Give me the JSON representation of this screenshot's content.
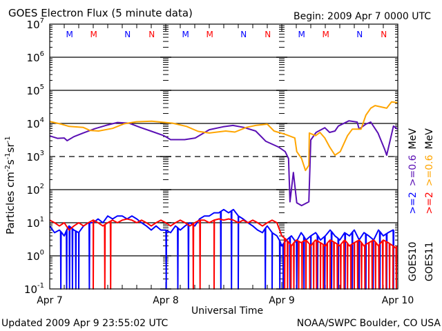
{
  "chart_data": {
    "type": "line",
    "title": "GOES Electron Flux (5 minute data)",
    "subtitle": "Begin: 2009 Apr 7 0000 UTC",
    "xlabel": "Universal Time",
    "ylabel": {
      "base": "Particles cm",
      "e1": "-2",
      "s": "s",
      "e2": "-1",
      "sr": "sr",
      "e3": "-1"
    },
    "x_unit": "hours since 2009 Apr 7 0000 UTC",
    "xlim": [
      0,
      72
    ],
    "xticks": [
      {
        "t": 0,
        "label": "Apr 7"
      },
      {
        "t": 24,
        "label": "Apr 8"
      },
      {
        "t": 48,
        "label": "Apr 9"
      },
      {
        "t": 72,
        "label": "Apr 10"
      }
    ],
    "yscale": "log",
    "ylim": [
      0.1,
      10000000
    ],
    "yticks": [
      {
        "exp": "7"
      },
      {
        "exp": "6"
      },
      {
        "exp": "5"
      },
      {
        "exp": "4"
      },
      {
        "exp": "3"
      },
      {
        "exp": "2"
      },
      {
        "exp": "1"
      },
      {
        "exp": "0"
      },
      {
        "exp": "-1"
      }
    ],
    "ytick_base": "10",
    "reference_lines": {
      "solid": [
        1000000,
        100000,
        10000,
        100,
        10,
        1
      ],
      "dashed": [
        1000
      ]
    },
    "markers": [
      {
        "t": 4.1,
        "label": "M",
        "color": "#0000ff"
      },
      {
        "t": 9.1,
        "label": "M",
        "color": "#ff0000"
      },
      {
        "t": 16.1,
        "label": "N",
        "color": "#0000ff"
      },
      {
        "t": 21.1,
        "label": "N",
        "color": "#ff0000"
      },
      {
        "t": 28.1,
        "label": "M",
        "color": "#0000ff"
      },
      {
        "t": 33.1,
        "label": "M",
        "color": "#ff0000"
      },
      {
        "t": 40.1,
        "label": "N",
        "color": "#0000ff"
      },
      {
        "t": 45.1,
        "label": "N",
        "color": "#ff0000"
      },
      {
        "t": 52.1,
        "label": "M",
        "color": "#0000ff"
      },
      {
        "t": 57.1,
        "label": "M",
        "color": "#ff0000"
      },
      {
        "t": 64.1,
        "label": "N",
        "color": "#0000ff"
      },
      {
        "t": 69.1,
        "label": "N",
        "color": "#ff0000"
      }
    ],
    "legend": {
      "placement": "right",
      "goes10": {
        "sat": "GOES10",
        "e2": ">=2",
        "e06": ">=0.6",
        "unit": "MeV"
      },
      "goes11": {
        "sat": "GOES11",
        "e2": ">=2",
        "e06": ">=0.6",
        "unit": "MeV"
      }
    },
    "series": [
      {
        "name": "GOES10 >=0.6 MeV",
        "color": "#5a0fb4",
        "t": [
          0,
          1.6,
          3,
          3.6,
          5,
          6.9,
          9.3,
          11.6,
          14,
          16.4,
          18.7,
          21.1,
          23.6,
          25,
          27.9,
          30.1,
          33,
          35.9,
          37.9,
          40.1,
          42.6,
          44.7,
          47.3,
          48.7,
          49.4,
          49.7,
          50.4,
          51.1,
          52.1,
          53.6,
          54,
          55.1,
          56.9,
          57.9,
          59,
          59.7,
          61.9,
          63.6,
          64,
          65.4,
          66.4,
          67.9,
          69.3,
          69.7,
          70.1,
          71.1,
          71.9
        ],
        "values": [
          4200,
          3550,
          3630,
          3020,
          3980,
          5130,
          6920,
          8710,
          10700,
          10200,
          7590,
          5750,
          4270,
          3240,
          3240,
          3630,
          6460,
          7940,
          8710,
          7590,
          5890,
          2880,
          1950,
          1410,
          870,
          43,
          330,
          40,
          33,
          43,
          3160,
          5370,
          7410,
          5370,
          5890,
          8320,
          12000,
          11000,
          6760,
          9550,
          11000,
          5130,
          1620,
          1100,
          1950,
          8320,
          6760
        ]
      },
      {
        "name": "GOES11 >=0.6 MeV",
        "color": "#ffa500",
        "t": [
          0,
          2.6,
          4,
          6.9,
          8.3,
          10.1,
          13,
          15.4,
          17.9,
          21.1,
          25.4,
          28.3,
          30.7,
          33,
          36.4,
          38.3,
          40.7,
          42.6,
          45,
          46.4,
          48.7,
          50.7,
          51.1,
          52.1,
          52.9,
          53.6,
          53.7,
          55,
          55.9,
          56.9,
          57.9,
          59,
          60.1,
          61.6,
          62.6,
          64.4,
          65.4,
          66.4,
          67.3,
          69.7,
          70.7,
          71.9
        ],
        "values": [
          11500,
          9330,
          8130,
          7590,
          6170,
          5890,
          7080,
          9770,
          11200,
          11700,
          10200,
          8130,
          5750,
          5130,
          5890,
          5500,
          7590,
          8710,
          9550,
          5890,
          4680,
          3630,
          1410,
          870,
          380,
          540,
          5130,
          4270,
          5370,
          3630,
          1950,
          1100,
          1410,
          4270,
          6760,
          6760,
          17800,
          28800,
          34700,
          28800,
          44700,
          42700
        ]
      },
      {
        "name": "GOES10 >=2 MeV",
        "color": "#0000ff",
        "hourly_start": 0,
        "values": [
          8,
          5,
          6,
          4,
          8,
          6,
          5,
          8,
          10,
          10,
          13,
          10,
          16,
          13,
          16,
          16,
          13,
          16,
          13,
          10,
          8,
          6,
          8,
          6,
          6,
          5,
          8,
          6,
          8,
          10,
          8,
          13,
          16,
          16,
          20,
          20,
          25,
          20,
          25,
          16,
          13,
          10,
          8,
          6,
          5,
          8,
          5,
          4,
          2,
          3,
          4,
          2.5,
          5,
          3,
          4,
          5,
          3,
          4,
          6,
          4,
          3,
          5,
          4,
          6,
          3,
          5,
          4,
          3,
          6,
          4,
          5,
          6
        ],
        "dropouts_to_0_1_at_t": [
          2.3,
          3.5,
          4.1,
          4.7,
          5.4,
          6,
          8.2,
          24.1,
          26.5,
          28.7,
          35.4,
          37.6,
          39,
          44.6,
          46,
          47.6,
          48.3,
          49.7,
          51.1,
          52.6,
          54,
          55.4,
          56.9,
          58.3,
          59.7,
          61.1,
          62.6,
          64,
          65.4,
          66.9,
          68.3,
          69.7,
          71.1
        ]
      },
      {
        "name": "GOES11 >=2 MeV",
        "color": "#ff0000",
        "hourly_start": 0,
        "values": [
          12,
          10,
          8,
          10,
          6,
          8,
          10,
          8,
          10,
          12,
          10,
          8,
          10,
          12,
          10,
          12,
          13,
          12,
          10,
          12,
          10,
          8,
          10,
          12,
          10,
          8,
          10,
          12,
          10,
          8,
          10,
          12,
          12,
          10,
          12,
          13,
          12,
          13,
          12,
          10,
          12,
          10,
          12,
          10,
          8,
          10,
          12,
          10,
          4,
          3,
          2,
          3,
          2.5,
          3,
          2,
          3,
          2.5,
          2,
          3,
          2.5,
          2,
          3,
          2,
          2.5,
          3,
          2,
          2.5,
          3,
          2,
          3,
          2.5,
          2
        ],
        "dropouts_to_0_1_at_t": [
          9,
          11.4,
          12.6,
          29.7,
          31.1,
          34,
          48.6,
          49.2,
          49.9,
          50.5,
          51.5,
          52.2,
          53,
          53.8,
          54.6,
          55.2,
          56,
          56.6,
          57.4,
          58,
          58.8,
          59.5,
          60.2,
          60.9,
          61.6,
          62.3,
          63,
          63.7,
          64.5,
          65.2,
          66,
          66.7,
          67.4,
          68.1,
          68.9,
          69.6,
          70.3,
          71,
          71.7
        ]
      }
    ]
  },
  "footer": {
    "updated": "Updated 2009 Apr  9 23:55:02 UTC",
    "source": "NOAA/SWPC Boulder, CO USA"
  }
}
